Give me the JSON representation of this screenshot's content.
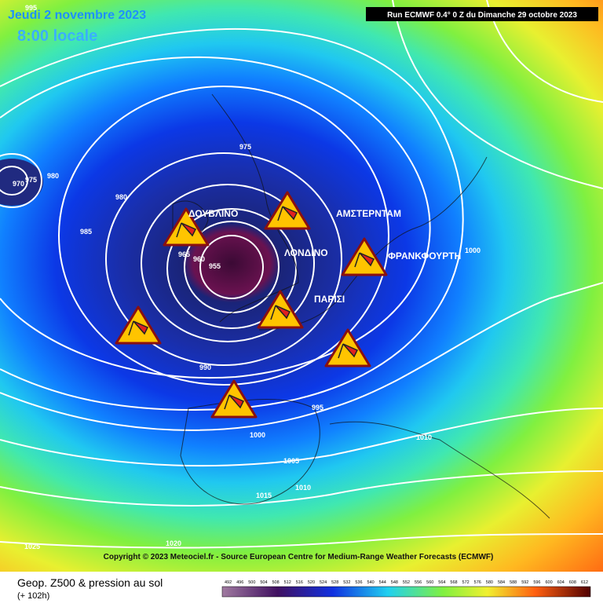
{
  "header": {
    "date": "Jeudi 2 novembre 2023",
    "time": "8:00 locale",
    "run": "Run ECMWF 0.4° 0 Z du Dimanche 29 octobre 2023"
  },
  "cities": [
    "ΔΟΥΒΛΙΝΟ",
    "ΛΟΝΔΙΝΟ",
    "ΑΜΣΤΕΡΝΤΑΜ",
    "ΦΡΑΝΚΦΟΥΡΤΗ",
    "ΠΑΡΙΣΙ"
  ],
  "isobar_labels": [
    995,
    975,
    970,
    975,
    980,
    980,
    985,
    965,
    960,
    955,
    990,
    995,
    1000,
    1005,
    1010,
    1015,
    1020,
    1025,
    1000,
    1010
  ],
  "copyright": "Copyright © 2023 Meteociel.fr - Source European Centre for Medium-Range Weather Forecasts (ECMWF)",
  "footer": {
    "title": "Geop. Z500 & pression au sol",
    "lead": "(+ 102h)"
  },
  "colorbar": [
    492,
    496,
    500,
    504,
    508,
    512,
    516,
    520,
    524,
    528,
    532,
    536,
    540,
    544,
    548,
    552,
    556,
    560,
    564,
    568,
    572,
    576,
    580,
    584,
    588,
    592,
    596,
    600,
    604,
    608,
    612
  ]
}
